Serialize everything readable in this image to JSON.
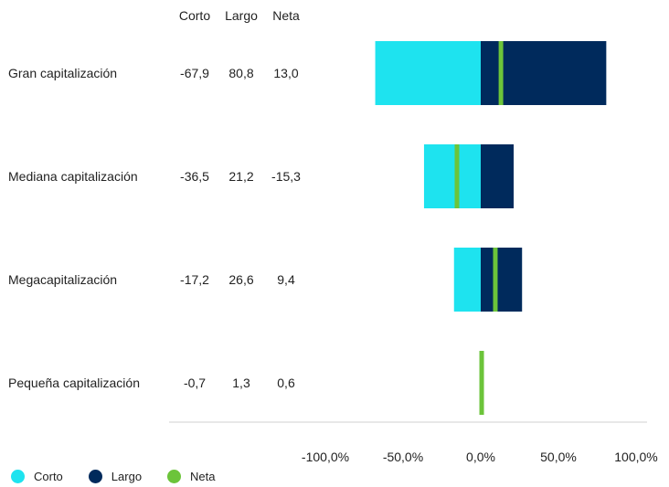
{
  "chart_data": {
    "type": "bar",
    "orientation": "horizontal",
    "stacked": true,
    "column_headers": [
      "Corto",
      "Largo",
      "Neta"
    ],
    "categories": [
      "Gran capitalización",
      "Mediana capitalización",
      "Megacapitalización",
      "Pequeña capitalización"
    ],
    "series": [
      {
        "name": "Corto",
        "values": [
          -67.9,
          -36.5,
          -17.2,
          -0.7
        ],
        "labels": [
          "-67,9",
          "-36,5",
          "-17,2",
          "-0,7"
        ],
        "color": "#1ee3ef"
      },
      {
        "name": "Largo",
        "values": [
          80.8,
          21.2,
          26.6,
          1.3
        ],
        "labels": [
          "80,8",
          "21,2",
          "26,6",
          "1,3"
        ],
        "color": "#002a5c"
      },
      {
        "name": "Neta",
        "values": [
          13.0,
          -15.3,
          9.4,
          0.6
        ],
        "labels": [
          "13,0",
          "-15,3",
          "9,4",
          "0,6"
        ],
        "color": "#6cc43a"
      }
    ],
    "x_ticks": [
      -100,
      -50,
      0,
      50,
      100
    ],
    "x_tick_labels": [
      "-100,0%",
      "-50,0%",
      "0,0%",
      "50,0%",
      "100,0%"
    ],
    "xlim": [
      -100,
      100
    ],
    "legend_position": "bottom-left",
    "grid": false
  }
}
